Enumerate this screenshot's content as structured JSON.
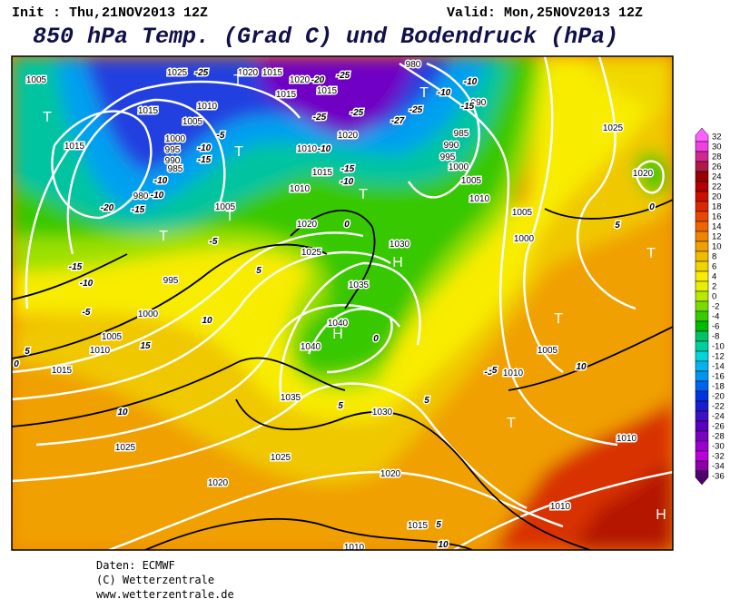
{
  "header": {
    "init": "Init : Thu,21NOV2013 12Z",
    "valid": "Valid: Mon,25NOV2013 12Z",
    "title": "850 hPa Temp. (Grad C) und Bodendruck (hPa)"
  },
  "map": {
    "isobar_labels": [
      1005,
      1025,
      1020,
      1015,
      1020,
      1015,
      1015,
      1010,
      1015,
      1005,
      1000,
      995,
      990,
      985,
      980,
      1015,
      1005,
      1010,
      1015,
      1010,
      1020,
      1020,
      1025,
      1030,
      1035,
      1040,
      1040,
      1035,
      1030,
      1025,
      1025,
      1020,
      1020,
      1015,
      1010,
      1010,
      1010,
      1005,
      1010,
      1000,
      1005,
      1010,
      1005,
      1000,
      995,
      990,
      985,
      980,
      990,
      1025,
      1020,
      995,
      1000,
      1005,
      1010,
      1015
    ],
    "temperature_labels": [
      -25,
      -25,
      -20,
      -25,
      -25,
      -27,
      -25,
      -10,
      -10,
      -15,
      -10,
      -15,
      -10,
      0,
      -5,
      -10,
      -15,
      -10,
      -10,
      -15,
      -20,
      -5,
      -15,
      -10,
      -5,
      5,
      10,
      15,
      5,
      0,
      10,
      5,
      0,
      5,
      -5,
      10,
      5,
      0,
      10,
      5,
      -5
    ],
    "pressure_centers": [
      "T",
      "T",
      "T",
      "T",
      "T",
      "T",
      "T",
      "T",
      "T",
      "T",
      "H",
      "H",
      "H"
    ]
  },
  "colorbar": {
    "levels": [
      32,
      30,
      28,
      26,
      24,
      22,
      20,
      18,
      16,
      14,
      12,
      10,
      8,
      6,
      4,
      2,
      0,
      -2,
      -4,
      -6,
      -8,
      -10,
      -12,
      -14,
      -16,
      -18,
      -20,
      -22,
      -24,
      -26,
      -28,
      -30,
      -32,
      -34,
      -36
    ],
    "colors": [
      "#ff60ff",
      "#f040e0",
      "#d02890",
      "#b01848",
      "#980000",
      "#b40000",
      "#cc1000",
      "#dc2800",
      "#e84800",
      "#f06400",
      "#f08400",
      "#f0a000",
      "#f0bc00",
      "#f0d400",
      "#f8ec00",
      "#e4f000",
      "#b8e800",
      "#78dc00",
      "#38cc00",
      "#00bc00",
      "#00c464",
      "#00d0a0",
      "#00d4dc",
      "#00b4f0",
      "#0094f0",
      "#0064f0",
      "#0034e0",
      "#1c1cd0",
      "#3c10c4",
      "#5c00c0",
      "#7c00c4",
      "#9c00d0",
      "#bc00dc",
      "#8c00a8",
      "#50006c"
    ]
  },
  "footer": {
    "source": "Daten: ECMWF",
    "copyright": "(C) Wetterzentrale",
    "url": "www.wetterzentrale.de"
  }
}
